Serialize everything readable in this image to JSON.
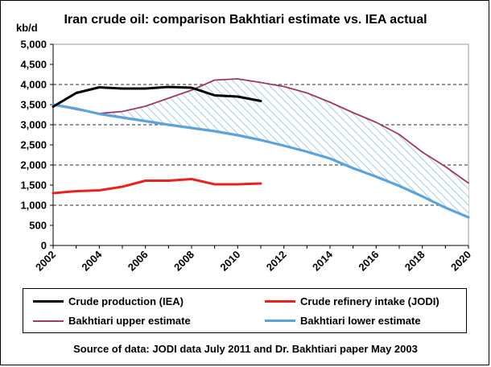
{
  "chart_data": {
    "type": "line",
    "title": "Iran crude oil: comparison Bakhtiari estimate vs. IEA actual",
    "ylabel": "kb/d",
    "xlabel": "",
    "ylim": [
      0,
      5000
    ],
    "xlim": [
      2002,
      2020
    ],
    "yticks": [
      "0",
      "500",
      "1,000",
      "1,500",
      "2,000",
      "2,500",
      "3,000",
      "3,500",
      "4,000",
      "4,500",
      "5,000"
    ],
    "xticks": [
      "2002",
      "2004",
      "2006",
      "2008",
      "2010",
      "2012",
      "2014",
      "2016",
      "2018",
      "2020"
    ],
    "grid": "dashed horizontal at 1,000 / 2,000 / 3,000 / 4,000",
    "legend_position": "bottom",
    "series": [
      {
        "name": "Crude production (IEA)",
        "color": "#000000",
        "x": [
          2002,
          2003,
          2004,
          2005,
          2006,
          2007,
          2008,
          2009,
          2010,
          2011
        ],
        "y": [
          3450,
          3790,
          3930,
          3900,
          3900,
          3940,
          3920,
          3730,
          3700,
          3590
        ]
      },
      {
        "name": "Crude refinery intake (JODI)",
        "color": "#e8231f",
        "x": [
          2002,
          2003,
          2004,
          2005,
          2006,
          2007,
          2008,
          2009,
          2010,
          2011
        ],
        "y": [
          1300,
          1350,
          1370,
          1460,
          1610,
          1610,
          1650,
          1520,
          1520,
          1540
        ]
      },
      {
        "name": "Bakhtiari upper estimate",
        "color": "#9b3b5c",
        "x": [
          2002,
          2003,
          2004,
          2005,
          2006,
          2007,
          2008,
          2009,
          2010,
          2011,
          2012,
          2013,
          2014,
          2015,
          2016,
          2017,
          2018,
          2019,
          2020
        ],
        "y": [
          3500,
          3380,
          3280,
          3330,
          3460,
          3660,
          3860,
          4110,
          4140,
          4050,
          3950,
          3790,
          3560,
          3300,
          3060,
          2760,
          2320,
          1960,
          1550
        ]
      },
      {
        "name": "Bakhtiari lower estimate",
        "color": "#5ba3d9",
        "x": [
          2002,
          2003,
          2004,
          2005,
          2006,
          2007,
          2008,
          2009,
          2010,
          2011,
          2012,
          2013,
          2014,
          2015,
          2016,
          2017,
          2018,
          2019,
          2020
        ],
        "y": [
          3500,
          3400,
          3270,
          3180,
          3090,
          3000,
          2920,
          2840,
          2740,
          2620,
          2480,
          2330,
          2160,
          1920,
          1710,
          1480,
          1220,
          940,
          700
        ]
      }
    ],
    "shaded_region": "hatched area between Bakhtiari upper and lower estimates"
  },
  "source_note": "Source of data: JODI data July 2011 and Dr. Bakhtiari paper May 2003"
}
